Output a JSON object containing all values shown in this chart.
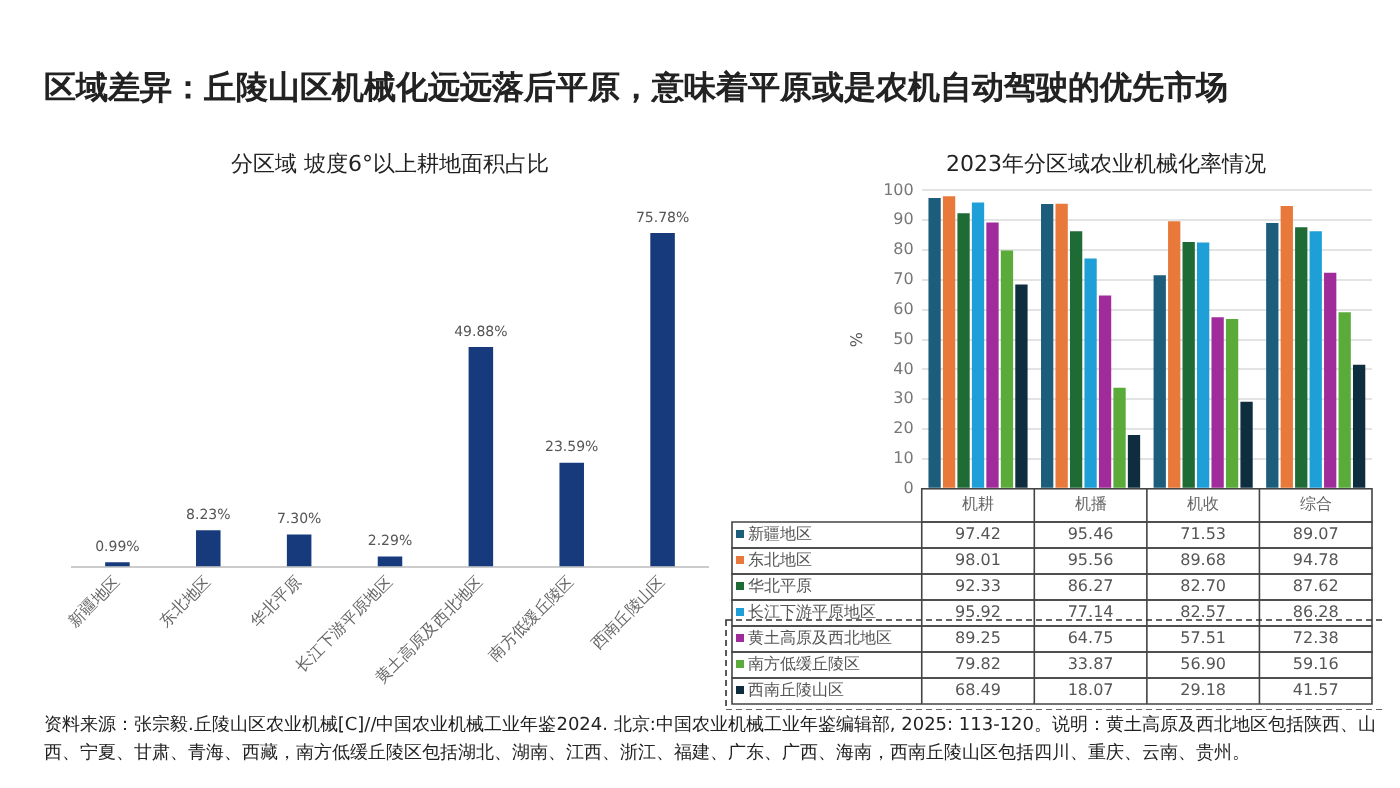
{
  "chart_data": [
    {
      "type": "bar",
      "title": "区域差异：丘陵山区机械化远远落后平原，意味着平原或是农机自动驾驶的优先市场",
      "subtitle": "分区域 坡度6°以上耕地面积占比",
      "categories": [
        "新疆地区",
        "东北地区",
        "华北平原",
        "长江下游平原地区",
        "黄土高原及西北地区",
        "南方低缓丘陵区",
        "西南丘陵山区"
      ],
      "values": [
        0.99,
        8.23,
        7.3,
        2.29,
        49.88,
        23.59,
        75.78
      ],
      "value_labels": [
        "0.99%",
        "8.23%",
        "7.30%",
        "2.29%",
        "49.88%",
        "23.59%",
        "75.78%"
      ],
      "color": "#173a7c",
      "tick_labels": "x",
      "annotations": [
        "资料来源：张宗毅.丘陵山区农业机械[C]//中国农业机械工业年鉴2024. 北京:中国农业机械工业年鉴编辑部, 2025: 113-120。说明：黄土高原及西北地区包括陕西、山西、宁夏、甘肃、青海、西藏，南方低缓丘陵区包括湖北、湖南、江西、浙江、福建、广东、广西、海南，西南丘陵山区包括四川、重庆、云南、贵州。"
      ]
    },
    {
      "type": "bar",
      "title": "2023年分区域农业机械化率情况",
      "categories": [
        "机耕",
        "机播",
        "机收",
        "综合"
      ],
      "ylabel": "%",
      "ylim": [
        0,
        100
      ],
      "yticks": [
        0,
        10,
        20,
        30,
        40,
        50,
        60,
        70,
        80,
        90,
        100
      ],
      "grid": "y",
      "legend": "bottom",
      "series": [
        {
          "name": "新疆地区",
          "color": "#1d5d7c",
          "values": [
            97.42,
            95.46,
            71.53,
            89.07
          ],
          "value_labels": [
            "97.42",
            "95.46",
            "71.53",
            "89.07"
          ]
        },
        {
          "name": "东北地区",
          "color": "#e8793a",
          "values": [
            98.01,
            95.56,
            89.68,
            94.78
          ],
          "value_labels": [
            "98.01",
            "95.56",
            "89.68",
            "94.78"
          ]
        },
        {
          "name": "华北平原",
          "color": "#1f6b36",
          "values": [
            92.33,
            86.27,
            82.7,
            87.62
          ],
          "value_labels": [
            "92.33",
            "86.27",
            "82.70",
            "87.62"
          ]
        },
        {
          "name": "长江下游平原地区",
          "color": "#1f9fd8",
          "values": [
            95.92,
            77.14,
            82.57,
            86.28
          ],
          "value_labels": [
            "95.92",
            "77.14",
            "82.57",
            "86.28"
          ]
        },
        {
          "name": "黄土高原及西北地区",
          "color": "#a02c9c",
          "values": [
            89.25,
            64.75,
            57.51,
            72.38
          ],
          "value_labels": [
            "89.25",
            "64.75",
            "57.51",
            "72.38"
          ]
        },
        {
          "name": "南方低缓丘陵区",
          "color": "#5aab3a",
          "values": [
            79.82,
            33.87,
            56.9,
            59.16
          ],
          "value_labels": [
            "79.82",
            "33.87",
            "56.90",
            "59.16"
          ]
        },
        {
          "name": "西南丘陵山区",
          "color": "#0e2e40",
          "values": [
            68.49,
            18.07,
            29.18,
            41.57
          ],
          "value_labels": [
            "68.49",
            "18.07",
            "29.18",
            "41.57"
          ]
        }
      ]
    }
  ]
}
